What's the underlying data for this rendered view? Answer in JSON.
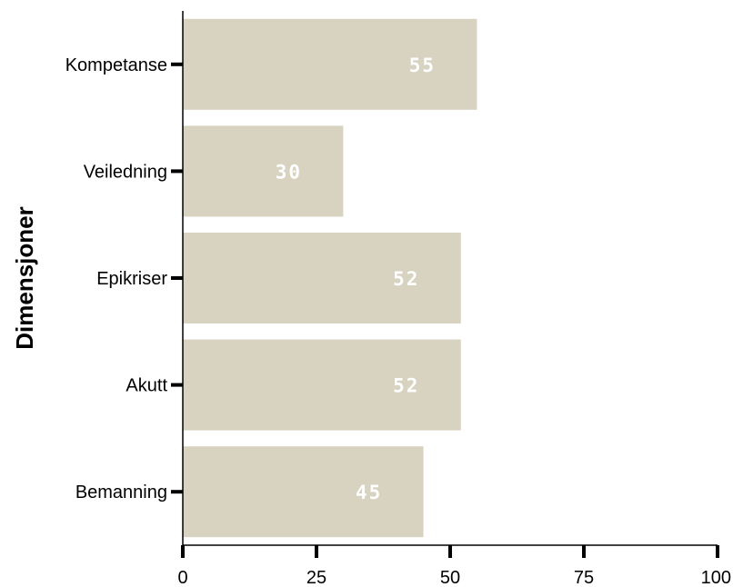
{
  "chart_data": {
    "type": "bar",
    "orientation": "horizontal",
    "categories": [
      "Kompetanse",
      "Veiledning",
      "Epikriser",
      "Akutt",
      "Bemanning"
    ],
    "values": [
      55,
      30,
      52,
      52,
      45
    ],
    "data_labels": [
      "55",
      "30",
      "52",
      "52",
      "45"
    ],
    "ylabel": "Dimensjoner",
    "xlabel": "",
    "title": "",
    "xlim": [
      0,
      100
    ],
    "xticks": [
      0,
      25,
      50,
      75,
      100
    ],
    "xtick_labels": [
      "0",
      "25",
      "50",
      "75",
      "100"
    ],
    "grid": false,
    "bar_color": "#d8d2c0",
    "label_color": "#ffffff"
  }
}
